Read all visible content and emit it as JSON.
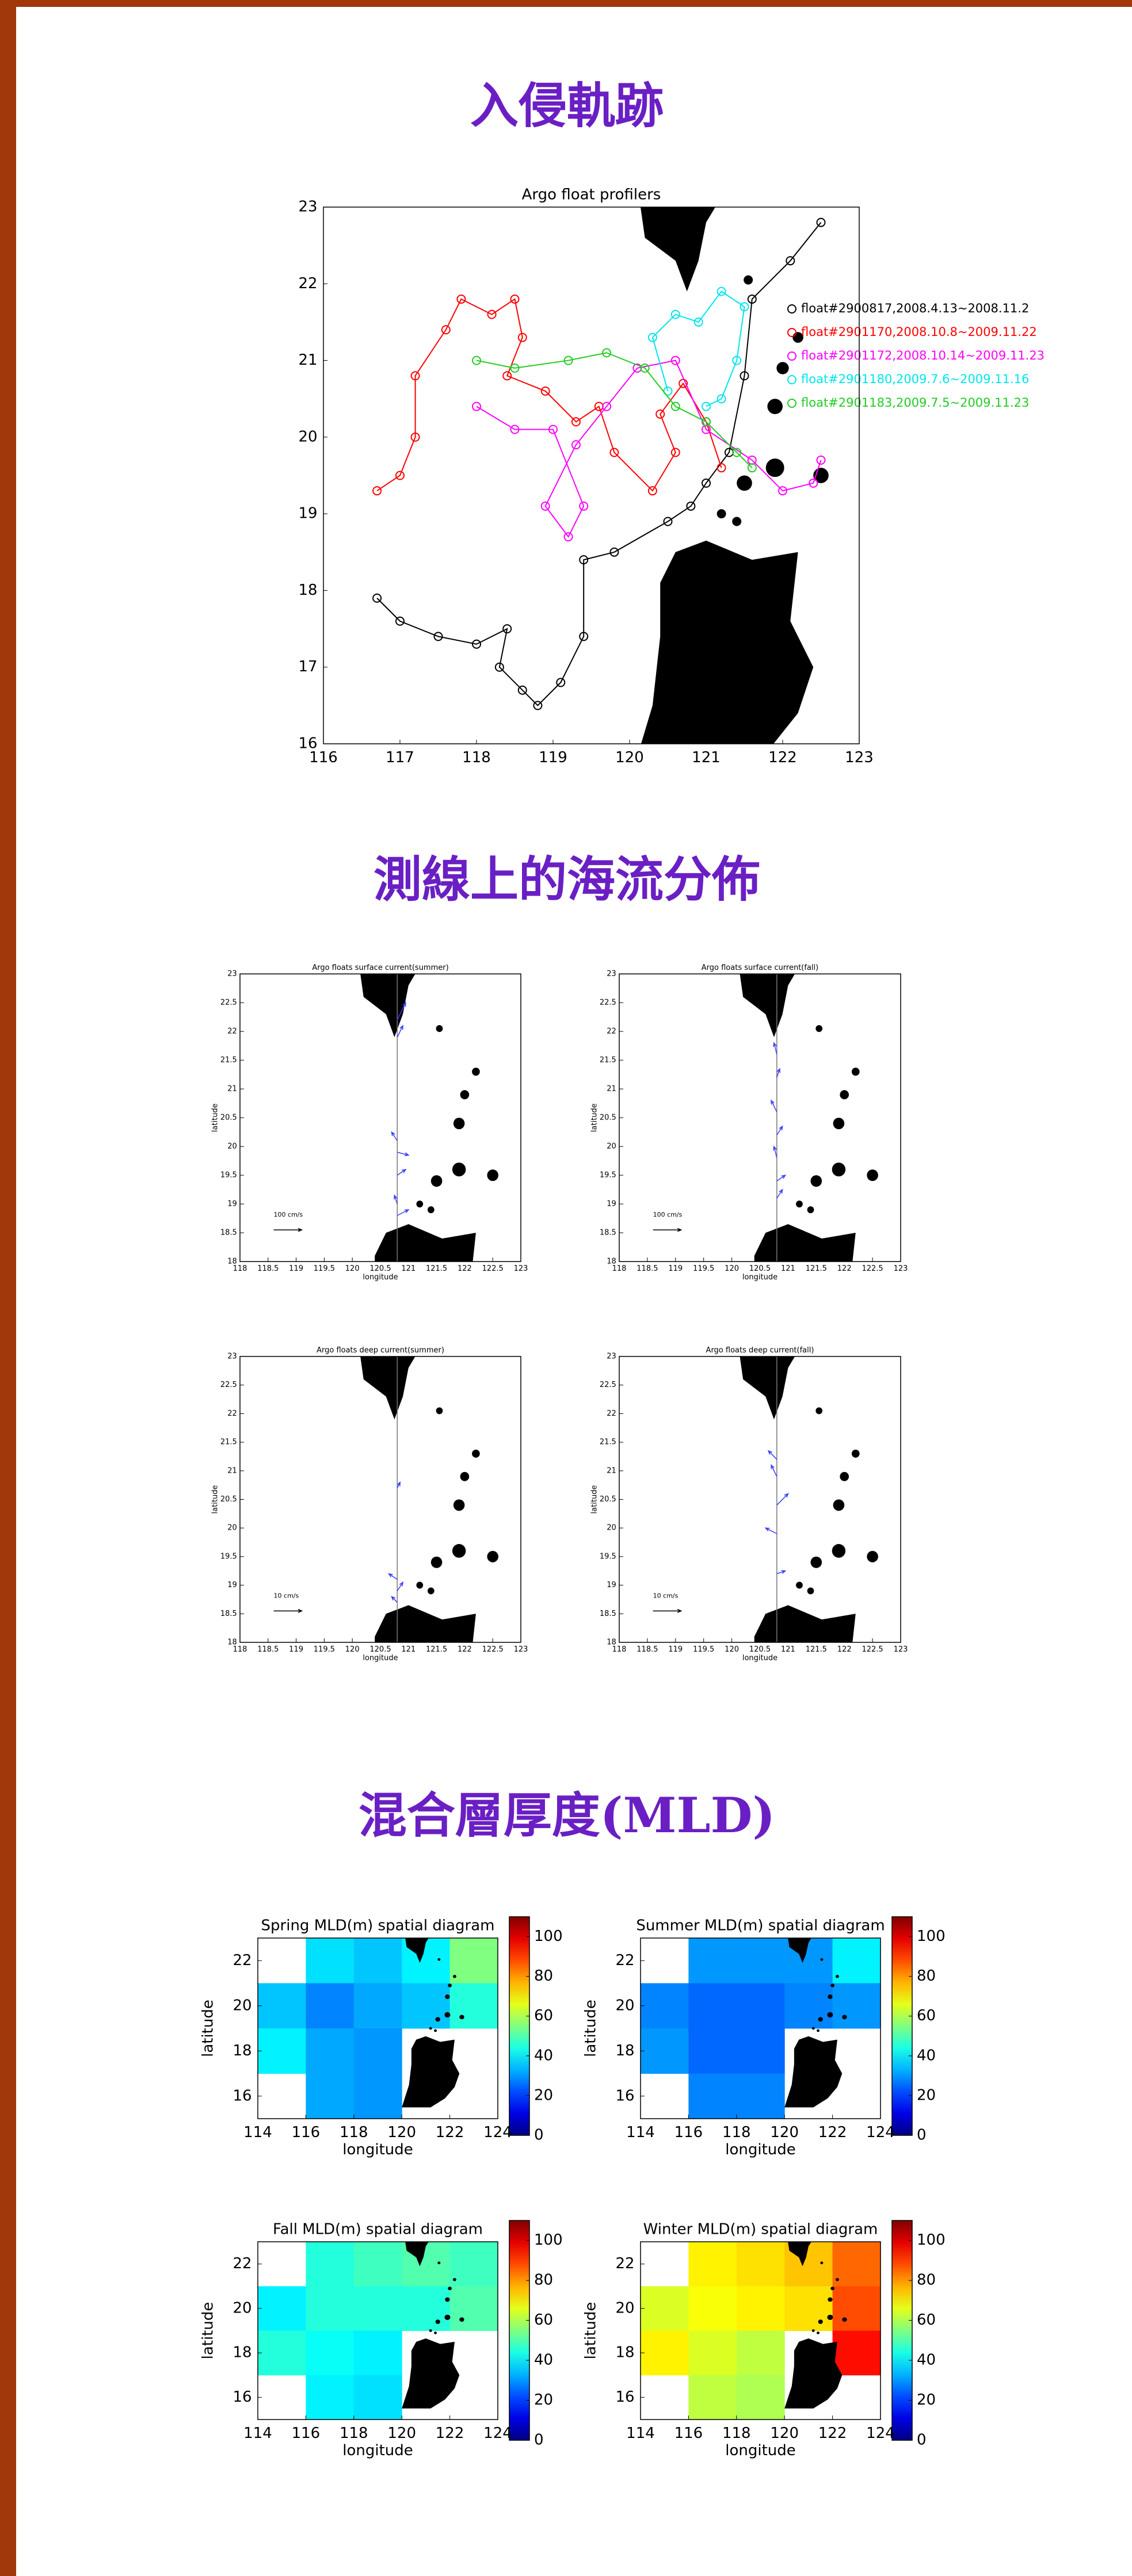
{
  "headings": [
    "入侵軌跡",
    "測線上的海流分佈",
    "混合層厚度(MLD)"
  ],
  "chart_data": [
    {
      "type": "line",
      "title": "Argo float profilers",
      "xlim": [
        116,
        123
      ],
      "ylim": [
        16,
        23
      ],
      "xticks": [
        116,
        117,
        118,
        119,
        120,
        121,
        122,
        123
      ],
      "yticks": [
        16,
        17,
        18,
        19,
        20,
        21,
        22,
        23
      ],
      "series": [
        {
          "name": "float#2900817,2008.4.13~2008.11.2",
          "color": "#000000",
          "x": [
            116.7,
            117,
            117.5,
            118,
            118.4,
            118.3,
            118.6,
            118.8,
            119.1,
            119.4,
            119.4,
            119.8,
            120.5,
            120.8,
            121.0,
            121.3,
            121.5,
            121.6,
            122.1,
            122.5
          ],
          "y": [
            17.9,
            17.6,
            17.4,
            17.3,
            17.5,
            17.0,
            16.7,
            16.5,
            16.8,
            17.4,
            18.4,
            18.5,
            18.9,
            19.1,
            19.4,
            19.8,
            20.8,
            21.8,
            22.3,
            22.8
          ]
        },
        {
          "name": "float#2901170,2008.10.8~2009.11.22",
          "color": "#ff0000",
          "x": [
            116.7,
            117,
            117.2,
            117.2,
            117.6,
            117.8,
            118.2,
            118.5,
            118.6,
            118.4,
            118.9,
            119.3,
            119.6,
            119.8,
            120.3,
            120.6,
            120.4,
            120.7,
            121,
            121.2
          ],
          "y": [
            19.3,
            19.5,
            20,
            20.8,
            21.4,
            21.8,
            21.6,
            21.8,
            21.3,
            20.8,
            20.6,
            20.2,
            20.4,
            19.8,
            19.3,
            19.8,
            20.3,
            20.7,
            20.2,
            19.6
          ]
        },
        {
          "name": "float#2901172,2008.10.14~2009.11.23",
          "color": "#ff00ff",
          "x": [
            118.0,
            118.5,
            119.0,
            119.4,
            119.2,
            118.9,
            119.3,
            119.7,
            120.1,
            120.6,
            121,
            121.6,
            122,
            122.4,
            122.5
          ],
          "y": [
            20.4,
            20.1,
            20.1,
            19.1,
            18.7,
            19.1,
            19.9,
            20.4,
            20.9,
            21.0,
            20.1,
            19.7,
            19.3,
            19.4,
            19.7
          ]
        },
        {
          "name": "float#2901180,2009.7.6~2009.11.16",
          "color": "#00e5ee",
          "x": [
            120.5,
            120.3,
            120.6,
            120.9,
            121.2,
            121.5,
            121.4,
            121.2,
            121
          ],
          "y": [
            20.6,
            21.3,
            21.6,
            21.5,
            21.9,
            21.7,
            21.0,
            20.5,
            20.4
          ]
        },
        {
          "name": "float#2901183,2009.7.5~2009.11.23",
          "color": "#22cc22",
          "x": [
            118.0,
            118.5,
            119.2,
            119.7,
            120.2,
            120.6,
            121,
            121.4,
            121.6
          ],
          "y": [
            21.0,
            20.9,
            21.0,
            21.1,
            20.9,
            20.4,
            20.2,
            19.8,
            19.6
          ]
        }
      ]
    },
    {
      "type": "quiver",
      "title": "Argo floats surface current(summer)",
      "xlabel": "longitude",
      "ylabel": "latitude",
      "xlim": [
        118,
        123
      ],
      "ylim": [
        18,
        23
      ],
      "xticks": [
        118,
        118.5,
        119,
        119.5,
        120,
        120.5,
        121,
        121.5,
        122,
        122.5,
        123
      ],
      "yticks": [
        18,
        18.5,
        19,
        19.5,
        20,
        20.5,
        21,
        21.5,
        22,
        22.5,
        23
      ],
      "x": [
        120.8,
        120.8,
        120.8,
        120.8,
        120.8,
        120.8,
        120.8
      ],
      "y": [
        22.2,
        21.9,
        20.1,
        19.9,
        19.5,
        19.0,
        18.8
      ],
      "u": [
        30,
        20,
        -20,
        40,
        30,
        -10,
        40
      ],
      "v": [
        60,
        40,
        30,
        -10,
        20,
        30,
        20
      ],
      "color": "#3a3aff",
      "scale": {
        "value": 100,
        "label": "100 cm/s"
      }
    },
    {
      "type": "quiver",
      "title": "Argo floats surface current(fall)",
      "xlabel": "longitude",
      "ylabel": "latitude",
      "xlim": [
        118,
        123
      ],
      "ylim": [
        18,
        23
      ],
      "xticks": [
        118,
        118.5,
        119,
        119.5,
        120,
        120.5,
        121,
        121.5,
        122,
        122.5,
        123
      ],
      "yticks": [
        18,
        18.5,
        19,
        19.5,
        20,
        20.5,
        21,
        21.5,
        22,
        22.5,
        23
      ],
      "x": [
        120.8,
        120.8,
        120.8,
        120.8,
        120.8,
        120.8,
        120.8
      ],
      "y": [
        21.6,
        21.2,
        20.6,
        20.2,
        19.8,
        19.4,
        19.1
      ],
      "u": [
        -10,
        10,
        -20,
        20,
        -10,
        30,
        20
      ],
      "v": [
        40,
        30,
        40,
        30,
        40,
        20,
        30
      ],
      "color": "#3a3aff",
      "scale": {
        "value": 100,
        "label": "100 cm/s"
      }
    },
    {
      "type": "quiver",
      "title": "Argo floats deep current(summer)",
      "xlabel": "longitude",
      "ylabel": "latitude",
      "xlim": [
        118,
        123
      ],
      "ylim": [
        18,
        23
      ],
      "xticks": [
        118,
        118.5,
        119,
        119.5,
        120,
        120.5,
        121,
        121.5,
        122,
        122.5,
        123
      ],
      "yticks": [
        18,
        18.5,
        19,
        19.5,
        20,
        20.5,
        21,
        21.5,
        22,
        22.5,
        23
      ],
      "x": [
        120.8,
        120.8,
        120.8,
        120.8
      ],
      "y": [
        20.7,
        19.1,
        18.9,
        18.7
      ],
      "u": [
        1,
        -3,
        2,
        -2
      ],
      "v": [
        2,
        2,
        3,
        2
      ],
      "color": "#3a3aff",
      "scale": {
        "value": 10,
        "label": "10 cm/s"
      }
    },
    {
      "type": "quiver",
      "title": "Argo floats deep current(fall)",
      "xlabel": "longitude",
      "ylabel": "latitude",
      "xlim": [
        118,
        123
      ],
      "ylim": [
        18,
        23
      ],
      "xticks": [
        118,
        118.5,
        119,
        119.5,
        120,
        120.5,
        121,
        121.5,
        122,
        122.5,
        123
      ],
      "yticks": [
        18,
        18.5,
        19,
        19.5,
        20,
        20.5,
        21,
        21.5,
        22,
        22.5,
        23
      ],
      "x": [
        120.8,
        120.8,
        120.8,
        120.8,
        120.8
      ],
      "y": [
        21.2,
        20.9,
        20.4,
        19.9,
        19.2
      ],
      "u": [
        -3,
        -2,
        4,
        -4,
        3
      ],
      "v": [
        3,
        4,
        4,
        2,
        1
      ],
      "color": "#3a3aff",
      "scale": {
        "value": 10,
        "label": "10 cm/s"
      }
    },
    {
      "type": "heatmap",
      "title": "Spring MLD(m)  spatial diagram",
      "xlabel": "longitude",
      "ylabel": "latitude",
      "xlim": [
        114,
        124
      ],
      "ylim": [
        15,
        23
      ],
      "xticks": [
        114,
        116,
        118,
        120,
        122,
        124
      ],
      "yticks": [
        16,
        18,
        20,
        22
      ],
      "x": [
        115,
        117,
        119,
        121,
        123
      ],
      "y": [
        22,
        20,
        18,
        16
      ],
      "values": [
        [
          null,
          38,
          35,
          40,
          55
        ],
        [
          35,
          28,
          32,
          35,
          45
        ],
        [
          40,
          32,
          30,
          null,
          null
        ],
        [
          null,
          32,
          30,
          null,
          null
        ]
      ],
      "clim": [
        0,
        110
      ],
      "cticks": [
        0,
        20,
        40,
        60,
        80,
        100
      ]
    },
    {
      "type": "heatmap",
      "title": "Summer MLD(m)  spatial diagram",
      "xlabel": "longitude",
      "ylabel": "latitude",
      "xlim": [
        114,
        124
      ],
      "ylim": [
        15,
        23
      ],
      "xticks": [
        114,
        116,
        118,
        120,
        122,
        124
      ],
      "yticks": [
        16,
        18,
        20,
        22
      ],
      "x": [
        115,
        117,
        119,
        121,
        123
      ],
      "y": [
        22,
        20,
        18,
        16
      ],
      "values": [
        [
          null,
          30,
          30,
          30,
          40
        ],
        [
          28,
          25,
          25,
          28,
          30
        ],
        [
          30,
          25,
          25,
          null,
          null
        ],
        [
          null,
          28,
          28,
          null,
          null
        ]
      ],
      "clim": [
        0,
        110
      ],
      "cticks": [
        0,
        20,
        40,
        60,
        80,
        100
      ]
    },
    {
      "type": "heatmap",
      "title": "Fall MLD(m)  spatial diagram",
      "xlabel": "longitude",
      "ylabel": "latitude",
      "xlim": [
        114,
        124
      ],
      "ylim": [
        15,
        23
      ],
      "xticks": [
        114,
        116,
        118,
        120,
        122,
        124
      ],
      "yticks": [
        16,
        18,
        20,
        22
      ],
      "x": [
        115,
        117,
        119,
        121,
        123
      ],
      "y": [
        22,
        20,
        18,
        16
      ],
      "values": [
        [
          null,
          45,
          48,
          50,
          48
        ],
        [
          40,
          45,
          45,
          45,
          50
        ],
        [
          45,
          42,
          40,
          null,
          null
        ],
        [
          null,
          40,
          38,
          null,
          null
        ]
      ],
      "clim": [
        0,
        110
      ],
      "cticks": [
        0,
        20,
        40,
        60,
        80,
        100
      ]
    },
    {
      "type": "heatmap",
      "title": "Winter MLD(m)  spatial diagram",
      "xlabel": "longitude",
      "ylabel": "latitude",
      "xlim": [
        114,
        124
      ],
      "ylim": [
        15,
        23
      ],
      "xticks": [
        114,
        116,
        118,
        120,
        122,
        124
      ],
      "yticks": [
        16,
        18,
        20,
        22
      ],
      "x": [
        115,
        117,
        119,
        121,
        123
      ],
      "y": [
        22,
        20,
        18,
        16
      ],
      "values": [
        [
          null,
          70,
          72,
          75,
          85
        ],
        [
          65,
          68,
          70,
          72,
          88
        ],
        [
          70,
          65,
          62,
          null,
          95
        ],
        [
          null,
          62,
          60,
          null,
          null
        ]
      ],
      "clim": [
        0,
        110
      ],
      "cticks": [
        0,
        20,
        40,
        60,
        80,
        100
      ]
    }
  ]
}
